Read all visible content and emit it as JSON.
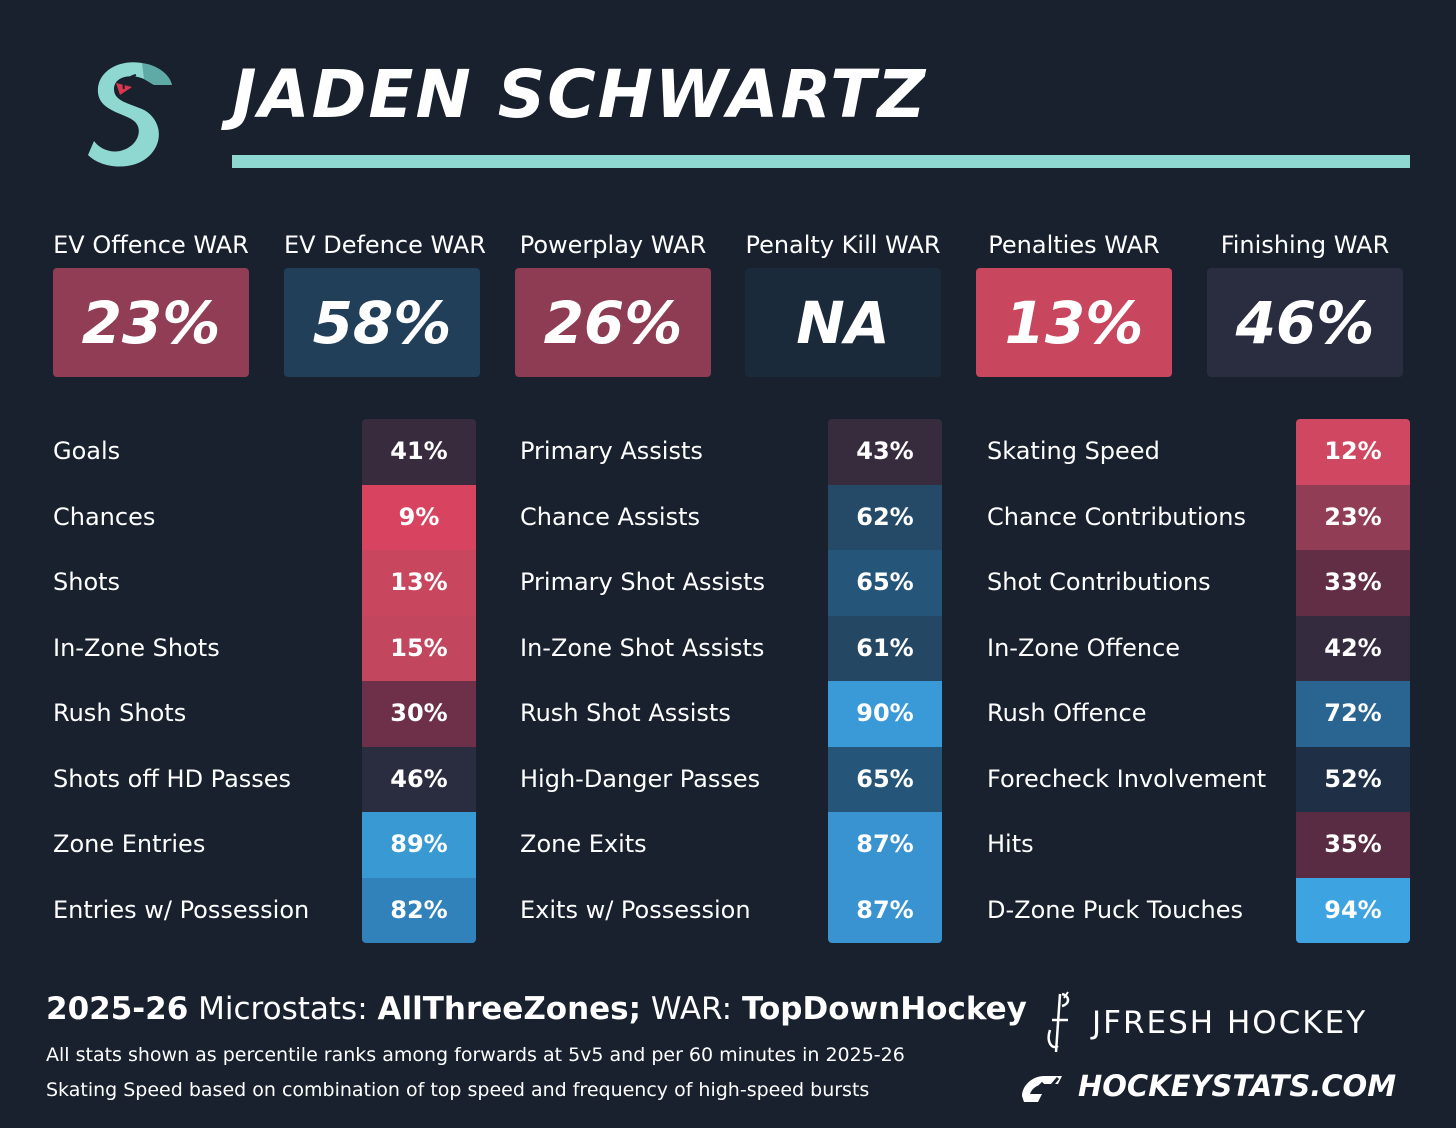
{
  "player_name": "JADEN SCHWARTZ",
  "colors": {
    "background": "#18212d",
    "accent_rule": "#8fd8d2"
  },
  "war": [
    {
      "label": "EV Offence WAR",
      "value": "23%",
      "color": "#913d55"
    },
    {
      "label": "EV Defence WAR",
      "value": "58%",
      "color": "#223f5a"
    },
    {
      "label": "Powerplay WAR",
      "value": "26%",
      "color": "#8e3c53"
    },
    {
      "label": "Penalty Kill WAR",
      "value": "NA",
      "color": "#1b2a3b"
    },
    {
      "label": "Penalties WAR",
      "value": "13%",
      "color": "#c8475f"
    },
    {
      "label": "Finishing WAR",
      "value": "46%",
      "color": "#2a2d40"
    }
  ],
  "stat_columns": [
    {
      "rows": [
        {
          "label": "Goals",
          "value": "41%",
          "color": "#382b3d"
        },
        {
          "label": "Chances",
          "value": "9%",
          "color": "#d8445f"
        },
        {
          "label": "Shots",
          "value": "13%",
          "color": "#c8475f"
        },
        {
          "label": "In-Zone Shots",
          "value": "15%",
          "color": "#c2465e"
        },
        {
          "label": "Rush Shots",
          "value": "30%",
          "color": "#6e3048"
        },
        {
          "label": "Shots off HD Passes",
          "value": "46%",
          "color": "#2a2d40"
        },
        {
          "label": "Zone Entries",
          "value": "89%",
          "color": "#3999d3"
        },
        {
          "label": "Entries w/ Possession",
          "value": "82%",
          "color": "#3182ba"
        }
      ]
    },
    {
      "rows": [
        {
          "label": "Primary Assists",
          "value": "43%",
          "color": "#362c3e"
        },
        {
          "label": "Chance Assists",
          "value": "62%",
          "color": "#244a68"
        },
        {
          "label": "Primary Shot Assists",
          "value": "65%",
          "color": "#26557a"
        },
        {
          "label": "In-Zone Shot Assists",
          "value": "61%",
          "color": "#244863"
        },
        {
          "label": "Rush Shot Assists",
          "value": "90%",
          "color": "#3a9ad8"
        },
        {
          "label": "High-Danger Passes",
          "value": "65%",
          "color": "#26557a"
        },
        {
          "label": "Zone Exits",
          "value": "87%",
          "color": "#3893d0"
        },
        {
          "label": "Exits w/ Possession",
          "value": "87%",
          "color": "#3893d0"
        }
      ]
    },
    {
      "rows": [
        {
          "label": "Skating Speed",
          "value": "12%",
          "color": "#cf4760"
        },
        {
          "label": "Chance Contributions",
          "value": "23%",
          "color": "#913d55"
        },
        {
          "label": "Shot Contributions",
          "value": "33%",
          "color": "#612e45"
        },
        {
          "label": "In-Zone Offence",
          "value": "42%",
          "color": "#352b3e"
        },
        {
          "label": "Rush Offence",
          "value": "72%",
          "color": "#2a6592"
        },
        {
          "label": "Forecheck Involvement",
          "value": "52%",
          "color": "#1f3046"
        },
        {
          "label": "Hits",
          "value": "35%",
          "color": "#5a2c43"
        },
        {
          "label": "D-Zone Puck Touches",
          "value": "94%",
          "color": "#3da3e1"
        }
      ]
    }
  ],
  "footer": {
    "season": "2025-26",
    "microstats_label": "Microstats:",
    "microstats_source": "AllThreeZones;",
    "war_label": "WAR:",
    "war_source": "TopDownHockey",
    "note1": "All stats shown as percentile ranks among forwards at 5v5 and per 60 minutes in 2025-26",
    "note2": "Skating Speed based on combination of top speed and frequency of high-speed bursts"
  },
  "branding": {
    "jfresh": "JFRESH HOCKEY",
    "hockeystats": "HOCKEYSTATS.COM"
  }
}
